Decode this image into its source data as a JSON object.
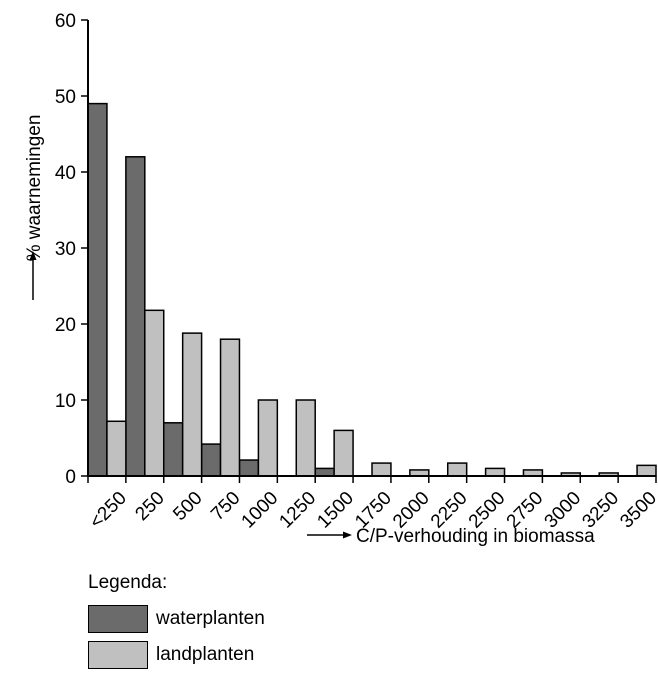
{
  "chart_data": {
    "type": "bar",
    "categories": [
      "<250",
      "250",
      "500",
      "750",
      "1000",
      "1250",
      "1500",
      "1750",
      "2000",
      "2250",
      "2500",
      "2750",
      "3000",
      "3250",
      "3500"
    ],
    "series": [
      {
        "name": "waterplanten",
        "color": "#6b6b6b",
        "values": [
          49,
          42,
          7,
          4.2,
          2.1,
          0,
          1,
          0,
          0,
          0,
          0,
          0,
          0,
          0,
          0
        ]
      },
      {
        "name": "landplanten",
        "color": "#c0c0c0",
        "values": [
          7.2,
          21.8,
          18.8,
          18,
          10,
          10,
          6,
          1.7,
          0.8,
          1.7,
          1,
          0.8,
          0.4,
          0.4,
          1.4
        ]
      }
    ],
    "ylabel": "% waarnemingen",
    "xlabel": "C/P-verhouding in biomassa",
    "ylim": [
      0,
      60
    ],
    "yticks": [
      0,
      10,
      20,
      30,
      40,
      50,
      60
    ],
    "legend_title": "Legenda:"
  }
}
